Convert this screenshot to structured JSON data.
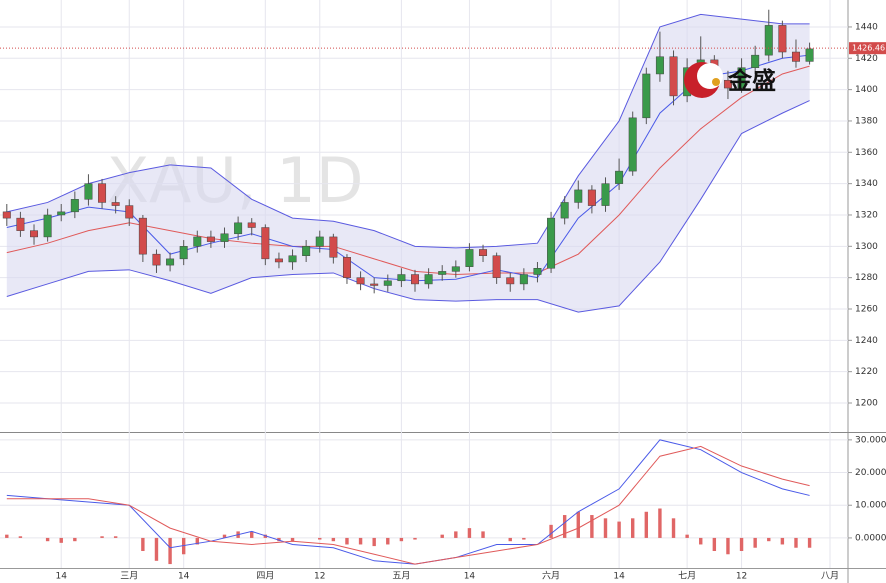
{
  "chart_data": [
    {
      "type": "candlestick",
      "title": "XAU, 1D",
      "logo_text": "金盛",
      "last_price": 1426.46,
      "up_color": "#3a9a4a",
      "down_color": "#d24b4b",
      "band_fill": "#d8d8f0",
      "open": [
        1322,
        1318,
        1310,
        1306,
        1320,
        1322,
        1330,
        1340,
        1328,
        1326,
        1318,
        1295,
        1288,
        1292,
        1300,
        1306,
        1303,
        1308,
        1315,
        1312,
        1292,
        1290,
        1294,
        1300,
        1306,
        1293,
        1280,
        1276,
        1275,
        1278,
        1282,
        1276,
        1282,
        1284,
        1287,
        1298,
        1294,
        1280,
        1276,
        1282,
        1286,
        1318,
        1328,
        1336,
        1326,
        1340,
        1348,
        1382,
        1410,
        1421,
        1396,
        1414,
        1419,
        1406,
        1401,
        1414,
        1422,
        1441,
        1424,
        1418
      ],
      "high": [
        1327,
        1322,
        1314,
        1324,
        1327,
        1335,
        1346,
        1343,
        1332,
        1330,
        1320,
        1298,
        1296,
        1304,
        1310,
        1310,
        1312,
        1319,
        1318,
        1314,
        1296,
        1298,
        1304,
        1310,
        1308,
        1295,
        1284,
        1280,
        1282,
        1286,
        1285,
        1286,
        1288,
        1291,
        1302,
        1301,
        1296,
        1283,
        1286,
        1290,
        1322,
        1332,
        1342,
        1339,
        1344,
        1356,
        1386,
        1414,
        1437,
        1425,
        1420,
        1434,
        1422,
        1412,
        1420,
        1428,
        1451,
        1444,
        1432,
        1430
      ],
      "low": [
        1313,
        1306,
        1301,
        1303,
        1316,
        1318,
        1326,
        1324,
        1321,
        1313,
        1290,
        1283,
        1284,
        1288,
        1296,
        1299,
        1299,
        1304,
        1307,
        1288,
        1286,
        1285,
        1290,
        1296,
        1289,
        1276,
        1272,
        1270,
        1271,
        1274,
        1271,
        1273,
        1278,
        1280,
        1284,
        1290,
        1276,
        1271,
        1272,
        1277,
        1283,
        1314,
        1324,
        1321,
        1322,
        1336,
        1345,
        1378,
        1405,
        1390,
        1392,
        1408,
        1400,
        1394,
        1398,
        1410,
        1418,
        1420,
        1414,
        1416
      ],
      "close": [
        1318,
        1310,
        1306,
        1320,
        1322,
        1330,
        1340,
        1328,
        1326,
        1318,
        1295,
        1288,
        1292,
        1300,
        1306,
        1303,
        1308,
        1315,
        1312,
        1292,
        1290,
        1294,
        1300,
        1306,
        1293,
        1280,
        1276,
        1275,
        1278,
        1282,
        1276,
        1282,
        1284,
        1287,
        1298,
        1294,
        1280,
        1276,
        1282,
        1286,
        1318,
        1328,
        1336,
        1326,
        1340,
        1348,
        1382,
        1410,
        1421,
        1396,
        1414,
        1419,
        1406,
        1401,
        1414,
        1422,
        1441,
        1424,
        1418,
        1426
      ],
      "band": {
        "x": [
          0,
          3,
          6,
          9,
          12,
          15,
          18,
          21,
          24,
          27,
          30,
          33,
          36,
          39,
          42,
          45,
          48,
          51,
          54,
          57,
          59
        ],
        "upper": [
          1322,
          1328,
          1340,
          1347,
          1352,
          1350,
          1330,
          1318,
          1316,
          1310,
          1300,
          1299,
          1300,
          1302,
          1345,
          1380,
          1440,
          1448,
          1445,
          1442,
          1442
        ],
        "lower": [
          1268,
          1276,
          1284,
          1285,
          1278,
          1270,
          1280,
          1282,
          1283,
          1273,
          1266,
          1265,
          1266,
          1266,
          1258,
          1262,
          1290,
          1330,
          1372,
          1385,
          1393
        ],
        "color": "#5a5ae0"
      },
      "series": [
        {
          "color": "#e05a5a",
          "x": [
            0,
            3,
            6,
            9,
            12,
            15,
            18,
            21,
            24,
            27,
            30,
            33,
            36,
            39,
            42,
            45,
            48,
            51,
            54,
            57,
            59
          ],
          "values": [
            1296,
            1302,
            1310,
            1315,
            1310,
            1305,
            1302,
            1300,
            1300,
            1292,
            1284,
            1282,
            1283,
            1283,
            1295,
            1320,
            1350,
            1375,
            1395,
            1410,
            1415
          ]
        },
        {
          "color": "#4a5ae8",
          "x": [
            0,
            3,
            6,
            9,
            12,
            15,
            18,
            21,
            24,
            27,
            30,
            33,
            36,
            39,
            42,
            45,
            48,
            51,
            54,
            57,
            59
          ],
          "values": [
            1312,
            1318,
            1325,
            1322,
            1295,
            1302,
            1308,
            1300,
            1298,
            1280,
            1278,
            1279,
            1285,
            1280,
            1318,
            1340,
            1385,
            1408,
            1412,
            1420,
            1422
          ]
        }
      ],
      "xlim": [
        -0.5,
        60.5
      ],
      "ylim": [
        1181.5,
        1457.2
      ],
      "yticks": [
        1200,
        1220,
        1240,
        1260,
        1280,
        1300,
        1320,
        1340,
        1360,
        1380,
        1400,
        1420,
        1440
      ],
      "grid": true
    },
    {
      "type": "macd",
      "hist_color": "#e06666",
      "histogram": [
        1,
        0.5,
        0,
        -1,
        -1.5,
        -1,
        0,
        0.5,
        0.5,
        0,
        -4,
        -7,
        -8,
        -5,
        -2,
        0,
        1,
        2,
        2,
        1,
        -1,
        -1,
        0,
        -0.5,
        -1,
        -2,
        -2,
        -2.5,
        -2,
        -1,
        -0.5,
        0,
        1,
        2,
        3,
        2,
        0,
        -1,
        -0.5,
        0,
        4,
        7,
        8,
        7,
        6,
        5,
        6,
        8,
        9,
        6,
        1,
        -2,
        -4,
        -5,
        -4,
        -3,
        -1,
        -2,
        -3,
        -3
      ],
      "series": [
        {
          "color": "#4a5ae8",
          "x": [
            0,
            3,
            6,
            9,
            12,
            15,
            18,
            21,
            24,
            27,
            30,
            33,
            36,
            39,
            42,
            45,
            48,
            51,
            54,
            57,
            59
          ],
          "values": [
            13,
            12,
            11,
            10,
            -3,
            -1,
            2,
            -2,
            -3,
            -7,
            -8,
            -6,
            -2,
            -2,
            8,
            15,
            30,
            27,
            20,
            15,
            13
          ]
        },
        {
          "color": "#e05a5a",
          "x": [
            0,
            3,
            6,
            9,
            12,
            15,
            18,
            21,
            24,
            27,
            30,
            33,
            36,
            39,
            42,
            45,
            48,
            51,
            54,
            57,
            59
          ],
          "values": [
            12,
            12,
            12,
            10,
            3,
            -1,
            -2,
            -1,
            -2,
            -5,
            -8,
            -6,
            -4,
            -2,
            3,
            10,
            25,
            28,
            22,
            18,
            16
          ]
        }
      ],
      "xlim": [
        -0.5,
        60.5
      ],
      "ylim": [
        -9.2,
        32.1
      ],
      "yticks": [
        {
          "value": 0,
          "label": "0.0000"
        },
        {
          "value": 10,
          "label": "10.000"
        },
        {
          "value": 20,
          "label": "20.000"
        },
        {
          "value": 30,
          "label": "30.000"
        }
      ],
      "xticks": [
        {
          "value": 4,
          "label": "14"
        },
        {
          "value": 9,
          "label": "三月"
        },
        {
          "value": 13,
          "label": "14"
        },
        {
          "value": 19,
          "label": "四月"
        },
        {
          "value": 23,
          "label": "12"
        },
        {
          "value": 29,
          "label": "五月"
        },
        {
          "value": 34,
          "label": "14"
        },
        {
          "value": 40,
          "label": "六月"
        },
        {
          "value": 45,
          "label": "14"
        },
        {
          "value": 50,
          "label": "七月"
        },
        {
          "value": 54,
          "label": "12"
        },
        {
          "value": 60.5,
          "label": "八月"
        }
      ],
      "grid": true
    }
  ]
}
